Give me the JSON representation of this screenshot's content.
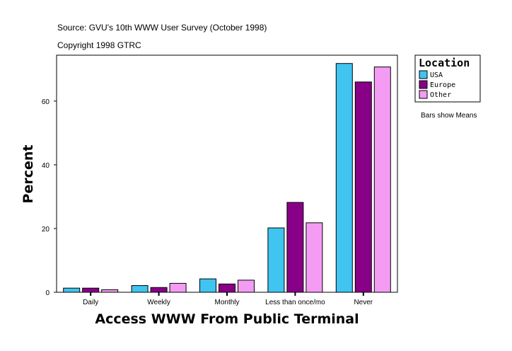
{
  "chart_data": {
    "type": "bar",
    "source": "Source: GVU's 10th WWW User Survey (October 1998)",
    "copyright": "Copyright 1998 GTRC",
    "xlabel": "Access WWW From Public Terminal",
    "ylabel": "Percent",
    "note": "Bars show Means",
    "legend_title": "Location",
    "legend_position": "right",
    "categories": [
      "Daily",
      "Weekly",
      "Monthly",
      "Less than once/mo",
      "Never"
    ],
    "yticks": [
      0,
      20,
      40,
      60
    ],
    "ylim": [
      0,
      74.4
    ],
    "grid": false,
    "series": [
      {
        "name": "USA",
        "color": "#40c4f0",
        "values": [
          1.3,
          2.1,
          4.2,
          20.2,
          71.8
        ]
      },
      {
        "name": "Europe",
        "color": "#880088",
        "values": [
          1.3,
          1.5,
          2.6,
          28.2,
          66.0
        ]
      },
      {
        "name": "Other",
        "color": "#f49cf4",
        "values": [
          0.8,
          2.8,
          3.8,
          21.8,
          70.7
        ]
      }
    ]
  }
}
